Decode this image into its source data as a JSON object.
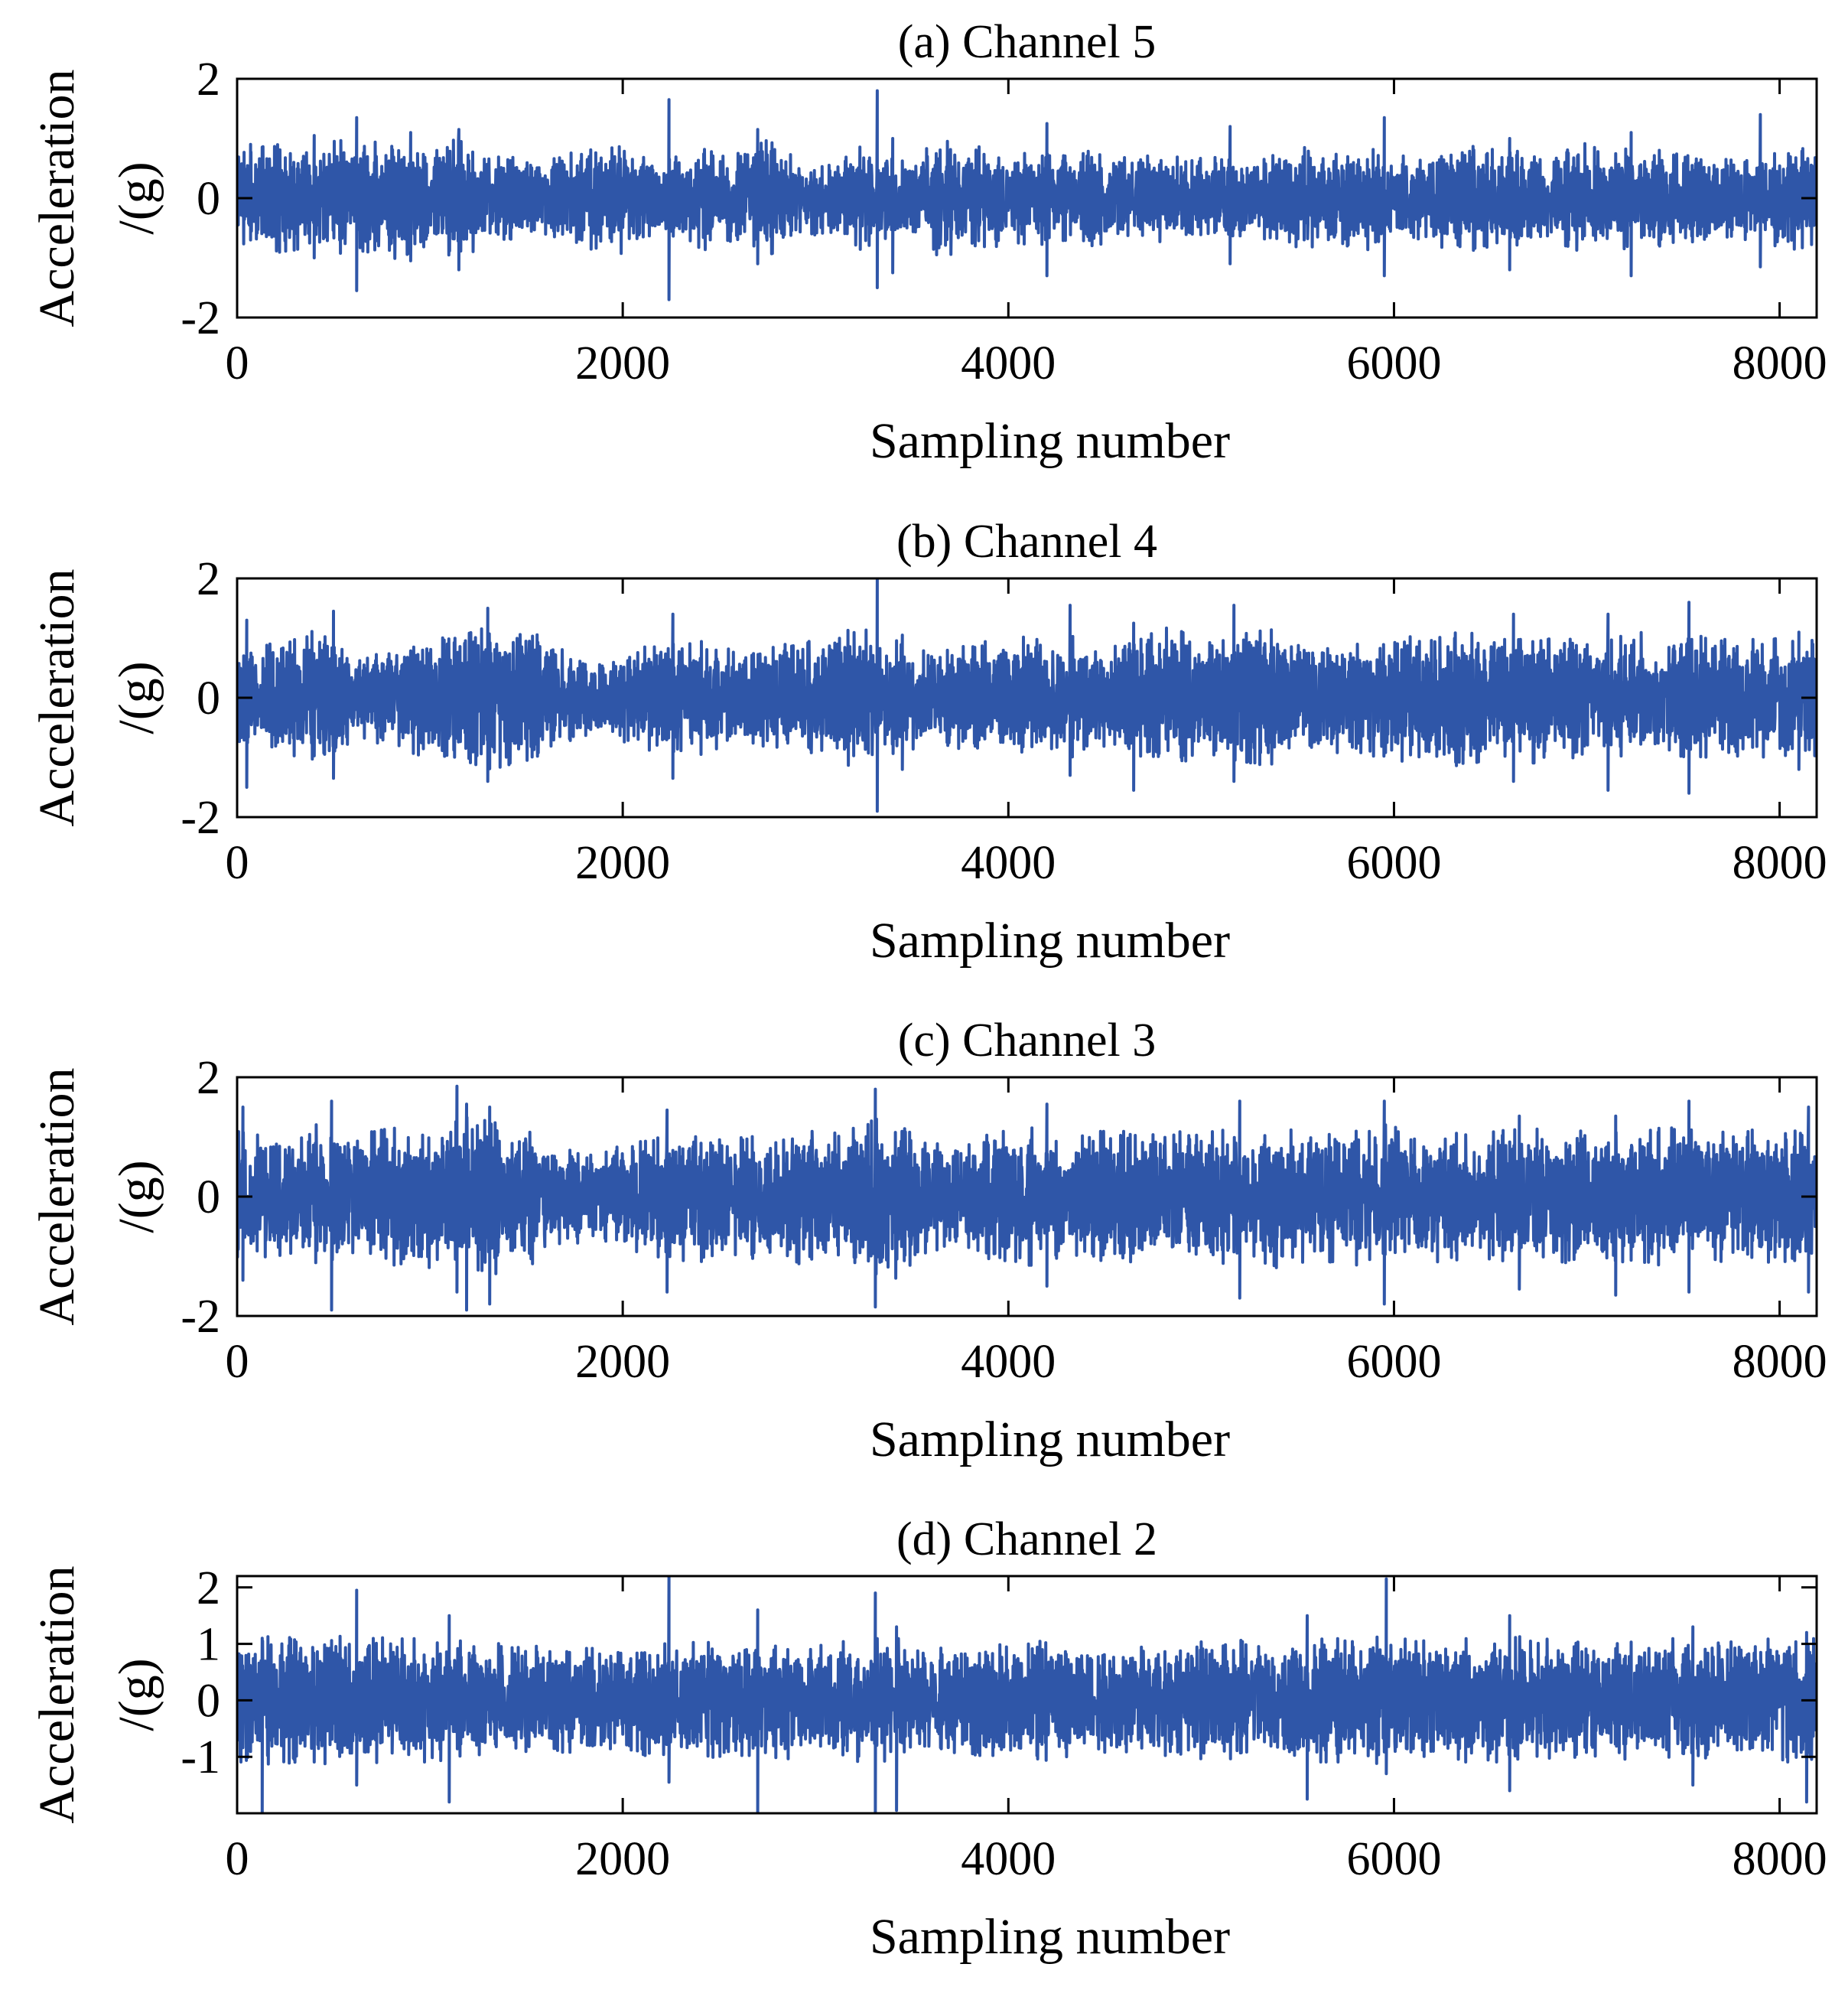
{
  "chart_data": [
    {
      "type": "line",
      "title": "(a) Channel 5",
      "xlabel": "Sampling number",
      "ylabel": [
        "Acceleration",
        "/(g)"
      ],
      "xlim": [
        0,
        8192
      ],
      "ylim": [
        -2,
        2
      ],
      "xticks": [
        0,
        2000,
        4000,
        6000,
        8000
      ],
      "yticks": [
        -2,
        0,
        2
      ],
      "grid": false,
      "series": [
        {
          "color": "#2f56a8",
          "envelope": [
            0.65,
            0.7,
            0.85,
            0.75,
            0.7,
            0.9,
            0.75,
            0.8,
            1.0,
            0.75,
            0.7,
            0.85,
            0.8,
            0.6,
            0.6,
            0.55,
            0.55,
            0.65,
            0.75,
            0.7,
            0.85,
            0.55,
            0.55,
            0.65,
            0.75,
            0.6,
            0.7,
            0.85,
            0.75,
            0.55,
            0.55,
            0.65,
            0.75,
            0.6,
            0.55,
            0.65,
            0.85,
            0.8,
            0.75,
            0.7,
            0.65,
            0.7,
            0.6,
            0.65,
            0.7,
            0.6,
            0.6,
            0.65,
            0.6,
            0.65,
            0.6,
            0.55,
            0.55,
            0.65,
            0.7,
            0.75,
            0.6,
            0.75,
            0.75,
            0.7,
            0.6,
            0.65,
            0.75,
            0.75,
            0.8,
            0.65,
            0.7,
            0.6,
            0.75,
            0.8,
            0.75,
            0.75,
            0.65,
            0.7,
            0.7,
            0.6,
            0.6,
            0.6,
            0.65,
            0.7,
            0.75,
            0.65
          ],
          "spikes": [
            [
              70,
              0.9,
              -0.7
            ],
            [
              400,
              1.05,
              -1.0
            ],
            [
              620,
              1.35,
              -1.55
            ],
            [
              900,
              1.1,
              -1.05
            ],
            [
              1150,
              1.15,
              -1.2
            ],
            [
              2240,
              1.65,
              -1.7
            ],
            [
              2700,
              1.15,
              -1.1
            ],
            [
              3320,
              1.8,
              -1.5
            ],
            [
              3400,
              1.0,
              -1.25
            ],
            [
              4200,
              1.25,
              -1.3
            ],
            [
              5150,
              1.2,
              -1.1
            ],
            [
              5950,
              1.35,
              -1.3
            ],
            [
              6600,
              1.0,
              -1.2
            ],
            [
              7230,
              1.1,
              -1.3
            ],
            [
              7900,
              1.4,
              -1.15
            ]
          ]
        }
      ]
    },
    {
      "type": "line",
      "title": "(b) Channel 4",
      "xlabel": "Sampling number",
      "ylabel": [
        "Acceleration",
        "/(g)"
      ],
      "xlim": [
        0,
        8192
      ],
      "ylim": [
        -2,
        2
      ],
      "xticks": [
        0,
        2000,
        4000,
        6000,
        8000
      ],
      "yticks": [
        -2,
        0,
        2
      ],
      "grid": false,
      "series": [
        {
          "color": "#2f56a8",
          "envelope": [
            0.8,
            0.75,
            0.8,
            0.85,
            1.0,
            1.05,
            0.6,
            0.75,
            0.8,
            0.85,
            0.9,
            0.85,
            0.95,
            1.05,
            1.1,
            1.0,
            0.8,
            0.7,
            0.6,
            0.6,
            0.65,
            0.75,
            0.85,
            0.9,
            0.95,
            0.7,
            0.75,
            0.8,
            0.9,
            0.95,
            0.85,
            0.95,
            1.05,
            0.8,
            0.9,
            0.7,
            0.65,
            0.75,
            0.8,
            0.85,
            0.9,
            0.85,
            0.85,
            0.9,
            0.8,
            0.75,
            0.8,
            0.95,
            1.05,
            0.85,
            0.85,
            0.9,
            0.95,
            1.0,
            0.85,
            0.85,
            0.8,
            0.8,
            0.85,
            0.85,
            0.95,
            0.95,
            1.0,
            1.0,
            0.9,
            0.85,
            0.95,
            0.95,
            0.9,
            0.85,
            0.8,
            0.9,
            0.95,
            0.85,
            0.85,
            0.9,
            0.85,
            0.85,
            0.85,
            0.9,
            0.8,
            0.85
          ],
          "spikes": [
            [
              50,
              1.3,
              -1.5
            ],
            [
              500,
              1.45,
              -1.35
            ],
            [
              1300,
              1.5,
              -1.4
            ],
            [
              2260,
              1.4,
              -1.35
            ],
            [
              3320,
              1.98,
              -1.9
            ],
            [
              3450,
              1.05,
              -1.2
            ],
            [
              4320,
              1.55,
              -1.3
            ],
            [
              4650,
              1.25,
              -1.55
            ],
            [
              5170,
              1.55,
              -1.4
            ],
            [
              6620,
              1.4,
              -1.4
            ],
            [
              7110,
              1.4,
              -1.55
            ],
            [
              7530,
              1.6,
              -1.6
            ],
            [
              8100,
              1.1,
              -1.2
            ]
          ]
        }
      ]
    },
    {
      "type": "line",
      "title": "(c) Channel 3",
      "xlabel": "Sampling number",
      "ylabel": [
        "Acceleration",
        "/(g)"
      ],
      "xlim": [
        0,
        8192
      ],
      "ylim": [
        -2,
        2
      ],
      "xticks": [
        0,
        2000,
        4000,
        6000,
        8000
      ],
      "yticks": [
        -2,
        0,
        2
      ],
      "grid": false,
      "series": [
        {
          "color": "#2f56a8",
          "envelope": [
            0.95,
            0.9,
            0.85,
            0.95,
            1.05,
            1.0,
            0.9,
            0.95,
            1.0,
            0.95,
            1.05,
            1.1,
            1.2,
            1.15,
            1.05,
            1.0,
            0.85,
            0.7,
            0.65,
            0.65,
            0.8,
            0.85,
            0.95,
            1.0,
            0.95,
            0.85,
            0.9,
            0.9,
            0.95,
            1.0,
            0.9,
            0.95,
            1.05,
            1.15,
            1.2,
            1.0,
            0.75,
            0.65,
            0.85,
            0.95,
            1.0,
            1.0,
            0.9,
            0.85,
            0.95,
            0.95,
            0.95,
            0.9,
            0.95,
            1.0,
            1.0,
            0.95,
            0.95,
            1.05,
            1.0,
            0.95,
            0.95,
            1.0,
            1.0,
            1.05,
            0.95,
            0.95,
            0.95,
            0.9,
            0.9,
            1.0,
            0.95,
            1.0,
            1.0,
            0.95,
            0.9,
            0.95,
            0.95,
            1.0,
            1.0,
            0.95,
            0.95,
            0.9,
            1.0,
            1.0,
            0.95,
            1.0
          ],
          "spikes": [
            [
              30,
              1.5,
              -1.4
            ],
            [
              490,
              1.6,
              -1.9
            ],
            [
              1140,
              1.85,
              -1.6
            ],
            [
              1190,
              1.55,
              -1.9
            ],
            [
              1310,
              1.5,
              -1.8
            ],
            [
              2230,
              1.45,
              -1.6
            ],
            [
              3310,
              1.8,
              -1.85
            ],
            [
              4200,
              1.55,
              -1.5
            ],
            [
              5200,
              1.6,
              -1.7
            ],
            [
              5950,
              1.6,
              -1.8
            ],
            [
              6650,
              1.35,
              -1.55
            ],
            [
              7150,
              1.35,
              -1.65
            ],
            [
              7530,
              1.6,
              -1.6
            ],
            [
              8150,
              1.5,
              -1.6
            ]
          ]
        }
      ]
    },
    {
      "type": "line",
      "title": "(d) Channel 2",
      "xlabel": "Sampling number",
      "ylabel": [
        "Acceleration",
        "/(g)"
      ],
      "xlim": [
        0,
        8192
      ],
      "ylim": [
        -2,
        2.2
      ],
      "xticks": [
        0,
        2000,
        4000,
        6000,
        8000
      ],
      "yticks": [
        -1,
        0,
        1,
        2
      ],
      "grid": false,
      "series": [
        {
          "color": "#2f56a8",
          "envelope": [
            0.95,
            0.95,
            1.0,
            0.95,
            0.95,
            1.0,
            0.95,
            1.0,
            0.95,
            0.95,
            0.95,
            0.9,
            0.95,
            0.9,
            0.85,
            0.85,
            0.8,
            0.8,
            0.8,
            0.8,
            0.85,
            0.85,
            0.9,
            0.9,
            0.9,
            0.85,
            0.85,
            0.85,
            0.9,
            0.9,
            0.85,
            0.9,
            0.95,
            0.95,
            0.95,
            0.85,
            0.8,
            0.85,
            0.85,
            0.85,
            0.9,
            0.9,
            0.95,
            0.85,
            0.8,
            0.8,
            0.8,
            0.85,
            0.85,
            0.9,
            0.9,
            0.9,
            0.95,
            0.95,
            0.95,
            0.95,
            0.95,
            0.95,
            0.95,
            1.0,
            0.95,
            0.95,
            0.9,
            0.95,
            0.95,
            0.95,
            1.0,
            0.95,
            0.95,
            0.95,
            0.9,
            0.95,
            0.95,
            0.95,
            0.95,
            0.95,
            0.9,
            0.9,
            0.95,
            0.95,
            0.95,
            0.95
          ],
          "spikes": [
            [
              130,
              1.1,
              -2.0
            ],
            [
              620,
              1.95,
              -1.5
            ],
            [
              1100,
              1.5,
              -1.8
            ],
            [
              2240,
              2.2,
              -1.45
            ],
            [
              2700,
              1.6,
              -2.0
            ],
            [
              3310,
              1.9,
              -2.0
            ],
            [
              3420,
              1.3,
              -1.95
            ],
            [
              5550,
              1.5,
              -1.75
            ],
            [
              5960,
              2.15,
              -1.3
            ],
            [
              6600,
              1.5,
              -1.6
            ],
            [
              7550,
              1.3,
              -1.5
            ],
            [
              8140,
              1.2,
              -1.8
            ]
          ]
        }
      ]
    }
  ]
}
